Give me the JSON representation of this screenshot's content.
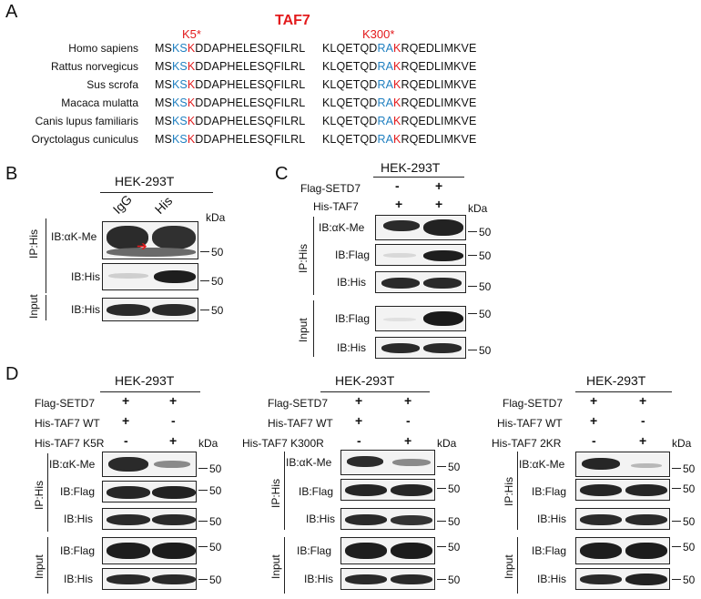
{
  "panels": {
    "a": {
      "letter": "A",
      "title": "TAF7",
      "site1": "K5*",
      "site2": "K300*",
      "rows": [
        {
          "species": "Homo sapiens",
          "s1a": "MS",
          "s1b": "KS",
          "s1c": "K",
          "s1d": "DDAPHELESQFILRL",
          "s2a": "KLQETQD",
          "s2b": "RA",
          "s2c": "K",
          "s2d": "RQEDLIMKVE"
        },
        {
          "species": "Rattus norvegicus",
          "s1a": "MS",
          "s1b": "KS",
          "s1c": "K",
          "s1d": "DDAPHELESQFILRL",
          "s2a": "KLQETQD",
          "s2b": "RA",
          "s2c": "K",
          "s2d": "RQEDLIMKVE"
        },
        {
          "species": "Sus scrofa",
          "s1a": "MS",
          "s1b": "KS",
          "s1c": "K",
          "s1d": "DDAPHELESQFILRL",
          "s2a": "KLQETQD",
          "s2b": "RA",
          "s2c": "K",
          "s2d": "RQEDLIMKVE"
        },
        {
          "species": "Macaca mulatta",
          "s1a": "MS",
          "s1b": "KS",
          "s1c": "K",
          "s1d": "DDAPHELESQFILRL",
          "s2a": "KLQETQD",
          "s2b": "RA",
          "s2c": "K",
          "s2d": "RQEDLIMKVE"
        },
        {
          "species": "Canis lupus familiaris",
          "s1a": "MS",
          "s1b": "KS",
          "s1c": "K",
          "s1d": "DDAPHELESQFILRL",
          "s2a": "KLQETQD",
          "s2b": "RA",
          "s2c": "K",
          "s2d": "RQEDLIMKVE"
        },
        {
          "species": "Oryctolagus cuniculus",
          "s1a": "MS",
          "s1b": "KS",
          "s1c": "K",
          "s1d": "DDAPHELESQFILRL",
          "s2a": "KLQETQD",
          "s2b": "RA",
          "s2c": "K",
          "s2d": "RQEDLIMKVE"
        }
      ]
    },
    "b": {
      "letter": "B",
      "cell": "HEK-293T",
      "lanes": [
        "IgG",
        "His"
      ],
      "kda": "kDa",
      "ip": "IP:His",
      "input": "Input",
      "blots": [
        "IB:αK-Me",
        "IB:His",
        "IB:His"
      ],
      "markers": [
        "50",
        "50",
        "50"
      ]
    },
    "c": {
      "letter": "C",
      "cell": "HEK-293T",
      "row1": {
        "label": "Flag-SETD7",
        "v": [
          "-",
          "+"
        ]
      },
      "row2": {
        "label": "His-TAF7",
        "v": [
          "+",
          "+"
        ]
      },
      "kda": "kDa",
      "ip": "IP:His",
      "input": "Input",
      "blots": [
        "IB:αK-Me",
        "IB:Flag",
        "IB:His",
        "IB:Flag",
        "IB:His"
      ],
      "markers": [
        "50",
        "50",
        "50",
        "50",
        "50"
      ]
    },
    "d": {
      "letter": "D",
      "sub": [
        {
          "cell": "HEK-293T",
          "r1": "Flag-SETD7",
          "r1v": [
            "+",
            "+"
          ],
          "r2": "His-TAF7 WT",
          "r2v": [
            "+",
            "-"
          ],
          "r3": "His-TAF7 K5R",
          "r3v": [
            "-",
            "+"
          ],
          "kda": "kDa",
          "ip": "IP:His",
          "input": "Input",
          "blots": [
            "IB:αK-Me",
            "IB:Flag",
            "IB:His",
            "IB:Flag",
            "IB:His"
          ],
          "markers": [
            "50",
            "50",
            "50",
            "50",
            "50"
          ]
        },
        {
          "cell": "HEK-293T",
          "r1": "Flag-SETD7",
          "r1v": [
            "+",
            "+"
          ],
          "r2": "His-TAF7 WT",
          "r2v": [
            "+",
            "-"
          ],
          "r3": "His-TAF7 K300R",
          "r3v": [
            "-",
            "+"
          ],
          "kda": "kDa",
          "ip": "IP:His",
          "input": "Input",
          "blots": [
            "IB:αK-Me",
            "IB:Flag",
            "IB:His",
            "IB:Flag",
            "IB:His"
          ],
          "markers": [
            "50",
            "50",
            "50",
            "50",
            "50"
          ]
        },
        {
          "cell": "HEK-293T",
          "r1": "Flag-SETD7",
          "r1v": [
            "+",
            "+"
          ],
          "r2": "His-TAF7 WT",
          "r2v": [
            "+",
            "-"
          ],
          "r3": "His-TAF7 2KR",
          "r3v": [
            "-",
            "+"
          ],
          "kda": "kDa",
          "ip": "IP:His",
          "input": "Input",
          "blots": [
            "IB:αK-Me",
            "IB:Flag",
            "IB:His",
            "IB:Flag",
            "IB:His"
          ],
          "markers": [
            "50",
            "50",
            "50",
            "50",
            "50"
          ]
        }
      ]
    }
  }
}
